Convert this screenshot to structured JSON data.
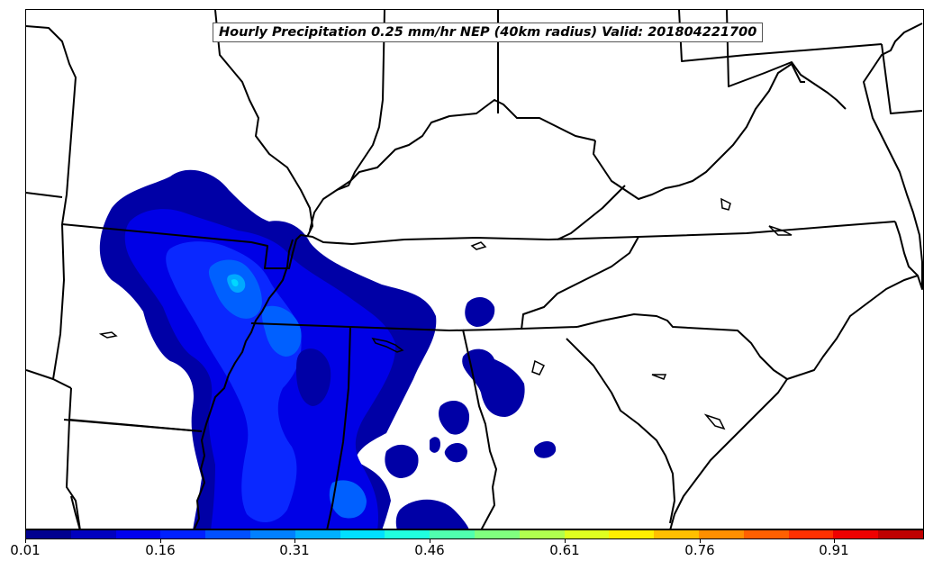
{
  "map": {
    "title": "Hourly Precipitation 0.25 mm/hr NEP (40km radius) Valid: 201804221700"
  },
  "colorbar": {
    "colors": [
      "#00008f",
      "#0000bf",
      "#0000ef",
      "#0020ff",
      "#0050ff",
      "#0080ff",
      "#00b0ff",
      "#00e0ff",
      "#20ffdf",
      "#50ffaf",
      "#80ff7f",
      "#b0ff4f",
      "#dfff20",
      "#ffef00",
      "#ffbf00",
      "#ff8f00",
      "#ff6000",
      "#ff3000",
      "#ef0000",
      "#bf0000"
    ],
    "tick_labels": [
      "0.01",
      "0.16",
      "0.31",
      "0.46",
      "0.61",
      "0.76",
      "0.91"
    ]
  },
  "legend_colors": {
    "level1": "#0000a6",
    "level2": "#0000e6",
    "level3": "#0a28ff",
    "level4": "#0060ff",
    "level5": "#00a8ff",
    "level6": "#00d8ff"
  }
}
